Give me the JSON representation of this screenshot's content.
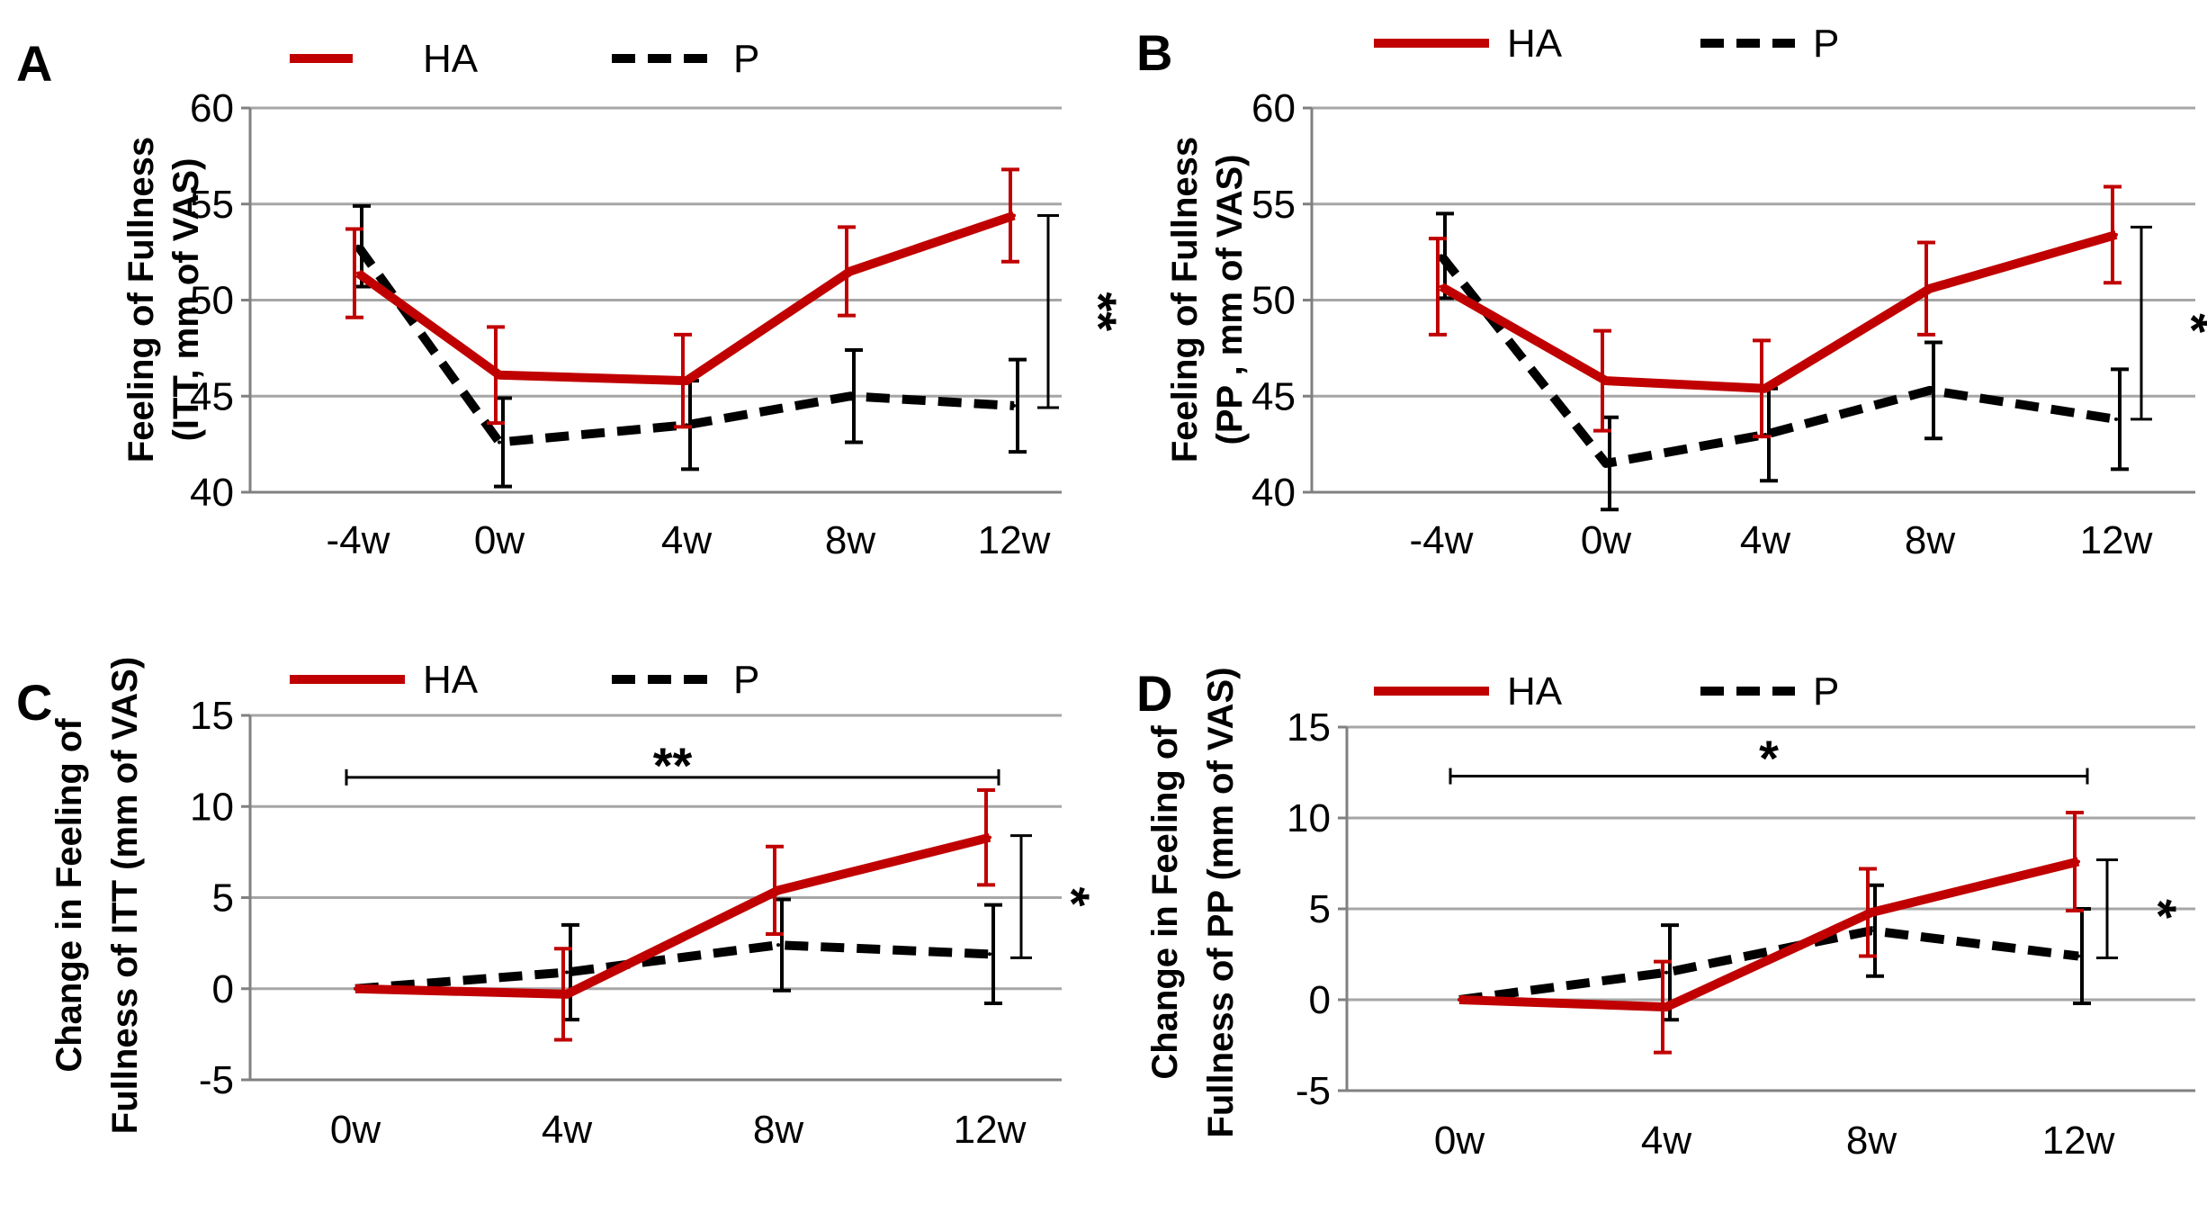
{
  "colors": {
    "HA": "#c00000",
    "P": "#000000",
    "grid": "#a6a6a6",
    "axis": "#808080"
  },
  "chart_data": [
    {
      "panel": "A",
      "type": "line",
      "categories": [
        "-4w",
        "0w",
        "4w",
        "8w",
        "12w"
      ],
      "ylabel": [
        "Feeling of Fullness",
        "(ITT, mm of VAS)"
      ],
      "ylim": [
        40,
        60
      ],
      "yticks": [
        40,
        45,
        50,
        55,
        60
      ],
      "legend": [
        "HA",
        "P"
      ],
      "series": [
        {
          "name": "HA",
          "values": [
            51.4,
            46.1,
            45.8,
            51.5,
            54.4
          ],
          "err": [
            2.3,
            2.5,
            2.4,
            2.3,
            2.4
          ]
        },
        {
          "name": "P",
          "values": [
            52.8,
            42.6,
            43.5,
            45.0,
            44.5
          ],
          "err": [
            2.1,
            2.3,
            2.3,
            2.4,
            2.4
          ]
        }
      ],
      "significance": [
        {
          "label": "**",
          "type": "vertical",
          "span": [
            44.4,
            54.4
          ]
        }
      ]
    },
    {
      "panel": "B",
      "type": "line",
      "categories": [
        "-4w",
        "0w",
        "4w",
        "8w",
        "12w"
      ],
      "ylabel": [
        "Feeling of Fullness",
        "(PP , mm of VAS)"
      ],
      "ylim": [
        40,
        60
      ],
      "yticks": [
        40,
        45,
        50,
        55,
        60
      ],
      "legend": [
        "HA",
        "P"
      ],
      "series": [
        {
          "name": "HA",
          "values": [
            50.7,
            45.8,
            45.4,
            50.6,
            53.4
          ],
          "err": [
            2.5,
            2.6,
            2.5,
            2.4,
            2.5
          ]
        },
        {
          "name": "P",
          "values": [
            52.3,
            41.5,
            43.0,
            45.3,
            43.8
          ],
          "err": [
            2.2,
            2.4,
            2.4,
            2.5,
            2.6
          ]
        }
      ],
      "significance": [
        {
          "label": "*",
          "type": "vertical",
          "span": [
            43.8,
            53.8
          ]
        }
      ]
    },
    {
      "panel": "C",
      "type": "line",
      "categories": [
        "0w",
        "4w",
        "8w",
        "12w"
      ],
      "ylabel": [
        "Change in Feeling of",
        "Fullness of ITT (mm of VAS)"
      ],
      "ylim": [
        -5,
        15
      ],
      "yticks": [
        -5,
        0,
        5,
        10,
        15
      ],
      "legend": [
        "HA",
        "P"
      ],
      "series": [
        {
          "name": "HA",
          "values": [
            0,
            -0.3,
            5.4,
            8.3
          ],
          "err": [
            0,
            2.5,
            2.4,
            2.6
          ]
        },
        {
          "name": "P",
          "values": [
            0,
            0.9,
            2.4,
            1.9
          ],
          "err": [
            0,
            2.6,
            2.5,
            2.7
          ]
        }
      ],
      "significance": [
        {
          "label": "**",
          "type": "horizontal",
          "from": "0w",
          "to": "12w",
          "at": 11.6
        },
        {
          "label": "*",
          "type": "vertical",
          "span": [
            1.7,
            8.4
          ]
        }
      ]
    },
    {
      "panel": "D",
      "type": "line",
      "categories": [
        "0w",
        "4w",
        "8w",
        "12w"
      ],
      "ylabel": [
        "Change in Feeling of",
        "Fullness of PP (mm of VAS)"
      ],
      "ylim": [
        -5,
        15
      ],
      "yticks": [
        -5,
        0,
        5,
        10,
        15
      ],
      "legend": [
        "HA",
        "P"
      ],
      "series": [
        {
          "name": "HA",
          "values": [
            0,
            -0.4,
            4.8,
            7.6
          ],
          "err": [
            0,
            2.5,
            2.4,
            2.7
          ]
        },
        {
          "name": "P",
          "values": [
            0,
            1.5,
            3.8,
            2.4
          ],
          "err": [
            0,
            2.6,
            2.5,
            2.6
          ]
        }
      ],
      "significance": [
        {
          "label": "*",
          "type": "horizontal",
          "from": "0w",
          "to": "12w",
          "at": 12.3
        },
        {
          "label": "*",
          "type": "vertical",
          "span": [
            2.3,
            7.7
          ]
        }
      ]
    }
  ]
}
